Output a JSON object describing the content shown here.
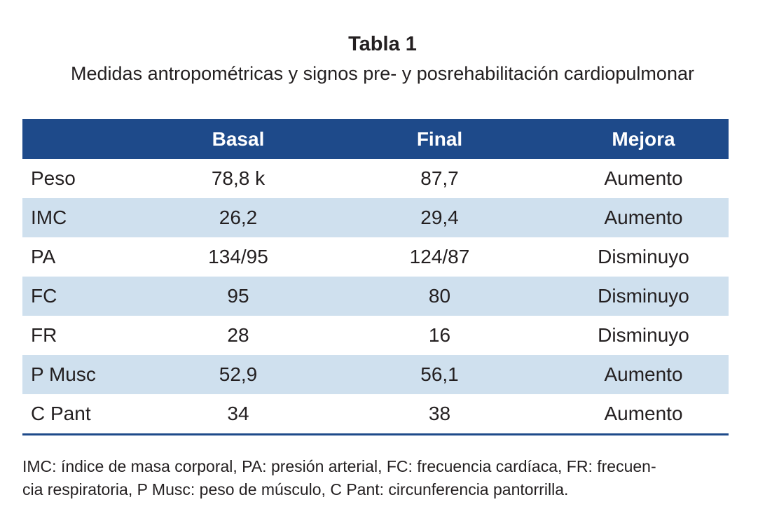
{
  "title": "Tabla 1",
  "subtitle": "Medidas antropométricas y signos pre- y posrehabilitación cardiopulmonar",
  "table": {
    "headers": [
      "",
      "Basal",
      "Final",
      "Mejora"
    ],
    "rows": [
      [
        "Peso",
        "78,8 k",
        "87,7",
        "Aumento"
      ],
      [
        "IMC",
        "26,2",
        "29,4",
        "Aumento"
      ],
      [
        "PA",
        "134/95",
        "124/87",
        "Disminuyo"
      ],
      [
        "FC",
        "95",
        "80",
        "Disminuyo"
      ],
      [
        "FR",
        "28",
        "16",
        "Disminuyo"
      ],
      [
        "P Musc",
        "52,9",
        "56,1",
        "Aumento"
      ],
      [
        "C Pant",
        "34",
        "38",
        "Aumento"
      ]
    ]
  },
  "footnote": {
    "line1": "IMC: índice de masa corporal, PA: presión arterial, FC: frecuencia cardíaca, FR: frecuen-",
    "line2": "cia respiratoria, P Musc: peso de músculo, C Pant: circunferencia pantorrilla."
  },
  "colors": {
    "header_bg": "#1e4a8a",
    "stripe_bg": "#cfe0ee",
    "text": "#231f20"
  }
}
